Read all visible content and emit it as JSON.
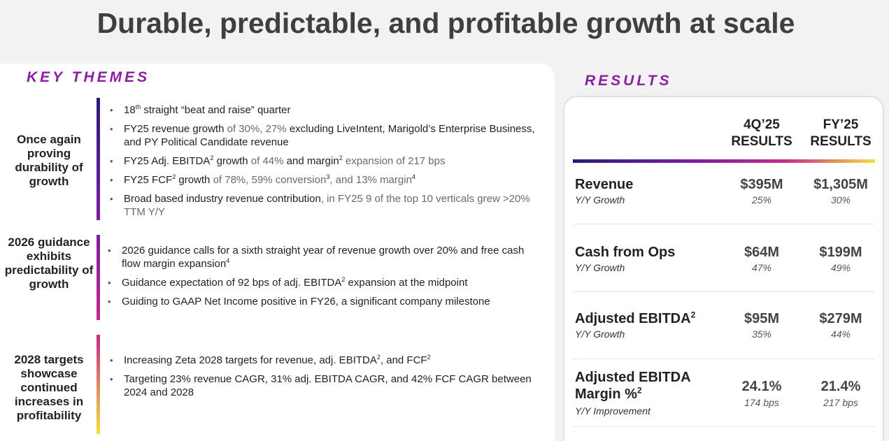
{
  "title": "Durable, predictable, and profitable growth at scale",
  "key_themes_label": "KEY THEMES",
  "results_label": "RESULTS",
  "themes": [
    {
      "name": "Once again proving durability of growth",
      "bar_color": [
        "#2a1b7a",
        "#7a1f9e"
      ],
      "bullets": [
        {
          "parts": [
            {
              "t": "18"
            },
            {
              "t": "th",
              "sup": true
            },
            {
              "t": " straight “beat and raise” quarter"
            }
          ]
        },
        {
          "parts": [
            {
              "t": "FY25 revenue growth"
            },
            {
              "t": " of 30%, 27% ",
              "light": true
            },
            {
              "t": "excluding LiveIntent, Marigold’s Enterprise Business, and PY Political Candidate revenue"
            }
          ]
        },
        {
          "parts": [
            {
              "t": "FY25 Adj. EBITDA"
            },
            {
              "t": "2",
              "sup": true
            },
            {
              "t": " growth "
            },
            {
              "t": "of 44% ",
              "light": true
            },
            {
              "t": "and margin"
            },
            {
              "t": "2",
              "sup": true
            },
            {
              "t": " expansion of 217 bps",
              "light": true
            }
          ]
        },
        {
          "parts": [
            {
              "t": "FY25 FCF"
            },
            {
              "t": "2",
              "sup": true
            },
            {
              "t": " growth "
            },
            {
              "t": "of 78%, 59% conversion",
              "light": true
            },
            {
              "t": "3",
              "sup": true
            },
            {
              "t": ", and 13% margin",
              "light": true
            },
            {
              "t": "4",
              "sup": true
            }
          ]
        },
        {
          "parts": [
            {
              "t": "Broad based industry revenue contribution"
            },
            {
              "t": ", in FY25 9 of the top 10 verticals grew >20% TTM Y/Y",
              "light": true
            }
          ]
        }
      ]
    },
    {
      "name": "2026 guidance exhibits predictability of growth",
      "bar_color": [
        "#7a1f9e",
        "#c42a8c"
      ],
      "bullets": [
        {
          "parts": [
            {
              "t": "2026 guidance calls for a sixth straight year of revenue growth over 20% and free cash flow margin expansion"
            },
            {
              "t": "4",
              "sup": true
            }
          ]
        },
        {
          "parts": [
            {
              "t": "Guidance expectation of 92 bps of adj. EBITDA"
            },
            {
              "t": "2",
              "sup": true
            },
            {
              "t": " expansion at the midpoint"
            }
          ]
        },
        {
          "parts": [
            {
              "t": "Guiding to GAAP Net Income positive in FY26, a significant company milestone"
            }
          ]
        }
      ]
    },
    {
      "name": "2028 targets showcase continued increases in profitability",
      "bar_color": [
        "#c42a8c",
        "#f2e23a"
      ],
      "bullets": [
        {
          "parts": [
            {
              "t": "Increasing Zeta 2028 targets for revenue, adj. EBITDA"
            },
            {
              "t": "2",
              "sup": true
            },
            {
              "t": ", and FCF"
            },
            {
              "t": "2",
              "sup": true
            }
          ]
        },
        {
          "parts": [
            {
              "t": "Targeting 23% revenue CAGR, 31% adj. EBITDA CAGR, and 42% FCF CAGR between 2024 and 2028"
            }
          ]
        }
      ]
    }
  ],
  "results": {
    "col1": "4Q’25 RESULTS",
    "col2": "FY’25 RESULTS",
    "rows": [
      {
        "metric": "Revenue",
        "sup": "",
        "sub": "Y/Y Growth",
        "q": "$395M",
        "q_sub": "25%",
        "fy": "$1,305M",
        "fy_sub": "30%"
      },
      {
        "metric": "Cash from Ops",
        "sup": "",
        "sub": "Y/Y Growth",
        "q": "$64M",
        "q_sub": "47%",
        "fy": "$199M",
        "fy_sub": "49%"
      },
      {
        "metric": "Adjusted EBITDA",
        "sup": "2",
        "sub": "Y/Y Growth",
        "q": "$95M",
        "q_sub": "35%",
        "fy": "$279M",
        "fy_sub": "44%"
      },
      {
        "metric": "Adjusted EBITDA Margin %",
        "sup": "2",
        "sub": "Y/Y Improvement",
        "q": "24.1%",
        "q_sub": "174 bps",
        "fy": "21.4%",
        "fy_sub": "217 bps"
      }
    ]
  }
}
